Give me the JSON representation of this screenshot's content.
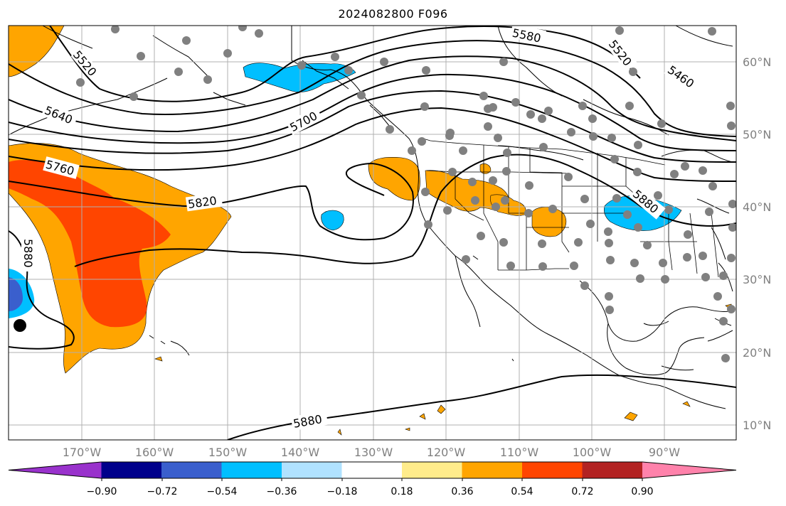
{
  "title": "2024082800 F096",
  "map": {
    "lon_labels": [
      "170°W",
      "160°W",
      "150°W",
      "140°W",
      "130°W",
      "120°W",
      "110°W",
      "100°W",
      "90°W"
    ],
    "lat_labels": [
      "60°N",
      "50°N",
      "40°N",
      "30°N",
      "20°N",
      "10°N"
    ],
    "contour_labels": [
      "5520",
      "5580",
      "5520",
      "5460",
      "5640",
      "5700",
      "5760",
      "5820",
      "5880",
      "5880",
      "5880"
    ]
  },
  "colorbar": {
    "tick_labels": [
      "−0.90",
      "−0.72",
      "−0.54",
      "−0.36",
      "−0.18",
      "0.18",
      "0.36",
      "0.54",
      "0.72",
      "0.90"
    ],
    "colors": [
      "#9932cc",
      "#00008b",
      "#3a5fcd",
      "#00bfff",
      "#b0e2ff",
      "#ffffff",
      "#ffec8b",
      "#ffa500",
      "#ff4500",
      "#b22222",
      "#ff82ab"
    ]
  }
}
